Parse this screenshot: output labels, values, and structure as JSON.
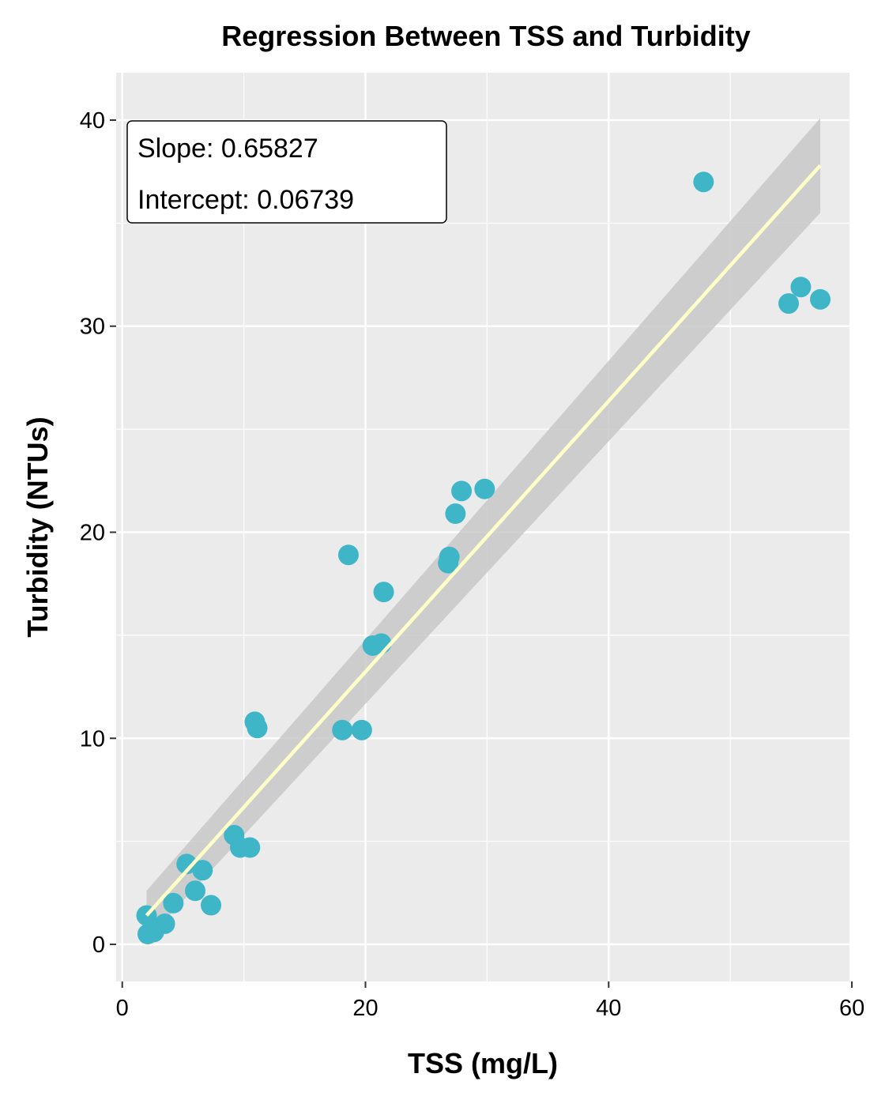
{
  "chart_data": {
    "type": "scatter",
    "title": "Regression Between TSS and Turbidity",
    "xlabel": "TSS (mg/L)",
    "ylabel": "Turbidity (NTUs)",
    "xlim": [
      -0.5,
      59.8
    ],
    "ylim": [
      -1.8,
      42.3
    ],
    "x_ticks": [
      0,
      20,
      40,
      60
    ],
    "x_tick_labels": [
      "0",
      "20",
      "40",
      "60"
    ],
    "y_ticks": [
      0,
      10,
      20,
      30,
      40
    ],
    "y_tick_labels": [
      "0",
      "10",
      "20",
      "30",
      "40"
    ],
    "grid": true,
    "legend": "none",
    "colors": {
      "points": "#3fb6c8",
      "fit_line": "#ffffc8",
      "confidence_band": "#c8c8c8",
      "panel_background": "#ebebeb",
      "grid": "#ffffff"
    },
    "points": [
      {
        "x": 2.0,
        "y": 1.4
      },
      {
        "x": 2.1,
        "y": 0.5
      },
      {
        "x": 2.6,
        "y": 0.6
      },
      {
        "x": 3.5,
        "y": 1.0
      },
      {
        "x": 4.2,
        "y": 2.0
      },
      {
        "x": 5.3,
        "y": 3.9
      },
      {
        "x": 6.0,
        "y": 2.6
      },
      {
        "x": 6.6,
        "y": 3.6
      },
      {
        "x": 7.3,
        "y": 1.9
      },
      {
        "x": 9.2,
        "y": 5.3
      },
      {
        "x": 9.7,
        "y": 4.7
      },
      {
        "x": 10.5,
        "y": 4.7
      },
      {
        "x": 10.9,
        "y": 10.8
      },
      {
        "x": 11.1,
        "y": 10.5
      },
      {
        "x": 18.1,
        "y": 10.4
      },
      {
        "x": 18.6,
        "y": 18.9
      },
      {
        "x": 19.7,
        "y": 10.4
      },
      {
        "x": 20.6,
        "y": 14.5
      },
      {
        "x": 21.3,
        "y": 14.6
      },
      {
        "x": 21.5,
        "y": 17.1
      },
      {
        "x": 26.8,
        "y": 18.5
      },
      {
        "x": 26.9,
        "y": 18.8
      },
      {
        "x": 27.4,
        "y": 20.9
      },
      {
        "x": 27.9,
        "y": 22.0
      },
      {
        "x": 29.8,
        "y": 22.1
      },
      {
        "x": 47.8,
        "y": 37.0
      },
      {
        "x": 54.8,
        "y": 31.1
      },
      {
        "x": 55.8,
        "y": 31.9
      },
      {
        "x": 57.4,
        "y": 31.3
      }
    ],
    "fit": {
      "x_range": [
        2.0,
        57.4
      ],
      "y_range": [
        1.4,
        37.8
      ],
      "band_lower": [
        0.2,
        35.5
      ],
      "band_upper": [
        2.6,
        40.1
      ]
    },
    "annotation": {
      "slope_text": "Slope: 0.65827",
      "intercept_text": "Intercept: 0.06739"
    }
  }
}
